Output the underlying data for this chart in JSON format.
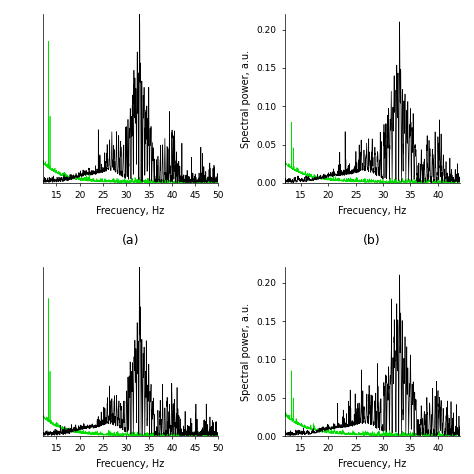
{
  "fig_width": 4.74,
  "fig_height": 4.74,
  "dpi": 100,
  "xlabel": "Frecuency, Hz",
  "ylabel_right": "Spectral power, a.u.",
  "xlim_left": [
    12,
    50
  ],
  "xlim_right": [
    12,
    44
  ],
  "xticks_left": [
    15,
    20,
    25,
    30,
    35,
    40,
    45,
    50
  ],
  "xticks_right": [
    15,
    20,
    25,
    30,
    35,
    40
  ],
  "ylim_left": [
    0,
    1.0
  ],
  "ylim_right": [
    0.0,
    0.22
  ],
  "yticks_right": [
    0.0,
    0.05,
    0.1,
    0.15,
    0.2
  ],
  "color_black": "#000000",
  "color_green": "#00dd00",
  "label_fontsize": 7,
  "tick_fontsize": 6.5,
  "subplot_label_fontsize": 9,
  "linewidth_black": 0.5,
  "linewidth_green": 0.5,
  "n_points": 2000
}
